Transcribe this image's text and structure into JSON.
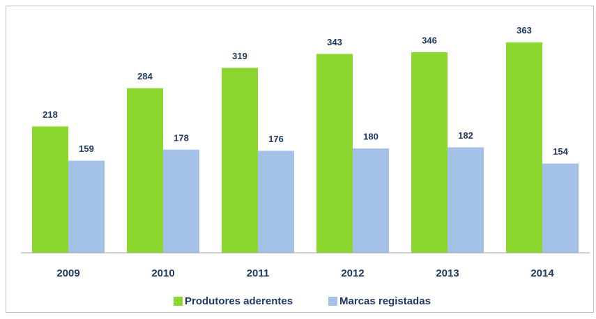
{
  "chart_data": {
    "type": "bar",
    "categories": [
      "2009",
      "2010",
      "2011",
      "2012",
      "2013",
      "2014"
    ],
    "series": [
      {
        "name": "Produtores aderentes",
        "color": "#8cd630",
        "values": [
          218,
          284,
          319,
          343,
          346,
          363
        ]
      },
      {
        "name": "Marcas registadas",
        "color": "#a4c2e8",
        "values": [
          159,
          178,
          176,
          180,
          182,
          154
        ]
      }
    ],
    "ylim": [
      0,
      400
    ],
    "legend": "bottom"
  }
}
